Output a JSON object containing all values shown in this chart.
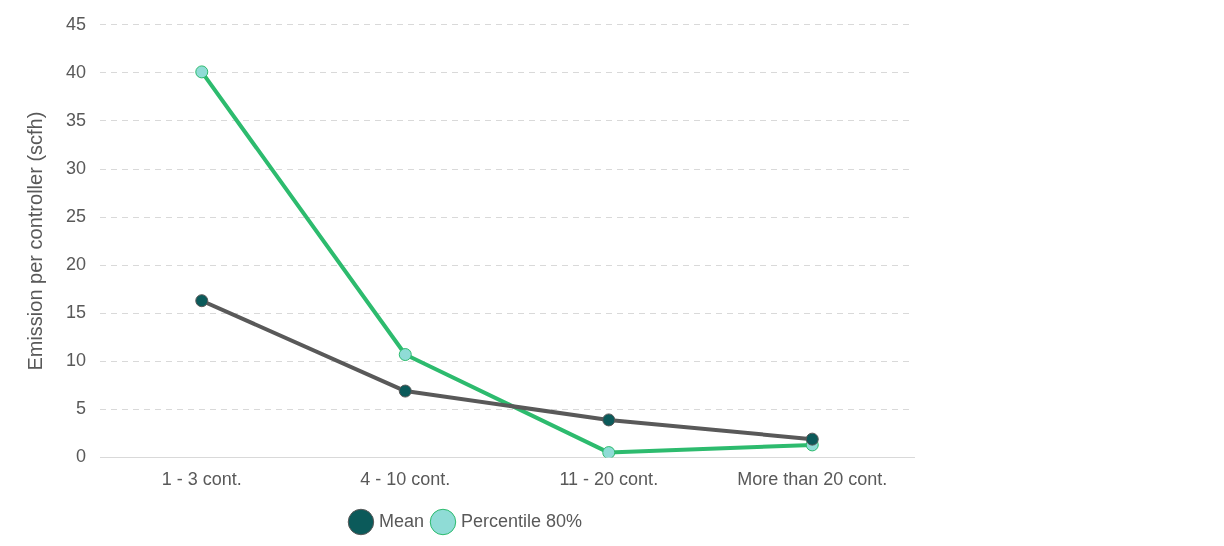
{
  "chart_data": {
    "type": "line",
    "ylabel": "Emission per controller (scfh)",
    "categories": [
      "1 - 3 cont.",
      "4 - 10 cont.",
      "11 - 20 cont.",
      "More than 20 cont."
    ],
    "series": [
      {
        "name": "Mean",
        "color": "#595959",
        "values": [
          16.3,
          6.9,
          3.9,
          1.9
        ]
      },
      {
        "name": "Percentile 80%",
        "color": "#2dbb6e",
        "values": [
          40.1,
          10.7,
          0.5,
          1.3
        ]
      }
    ],
    "ylim": [
      0,
      45
    ],
    "yticks": [
      0,
      5,
      10,
      15,
      20,
      25,
      30,
      35,
      40,
      45
    ],
    "grid": "y",
    "legend": "bottom",
    "marker": "circle",
    "line_style": "solid"
  }
}
